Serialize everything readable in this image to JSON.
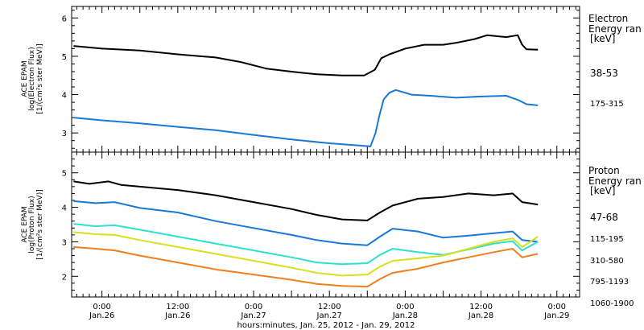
{
  "x_axis": {
    "ticks": [
      {
        "time": "0:00",
        "date": "Jan.26",
        "hours": 24
      },
      {
        "time": "12:00",
        "date": "Jan.26",
        "hours": 36
      },
      {
        "time": "0:00",
        "date": "Jan.27",
        "hours": 48
      },
      {
        "time": "12:00",
        "date": "Jan.27",
        "hours": 60
      },
      {
        "time": "0:00",
        "date": "Jan.28",
        "hours": 72
      },
      {
        "time": "12:00",
        "date": "Jan.28",
        "hours": 84
      },
      {
        "time": "0:00",
        "date": "Jan.29",
        "hours": 96
      }
    ],
    "label": "hours:minutes, Jan. 25, 2012 - Jan. 29, 2012"
  },
  "chart_data": [
    {
      "type": "line",
      "panel": "electron",
      "ylabel": [
        "ACE EPAM",
        "log(Electron Flux)",
        "[1/(cm²s ster MeV)]"
      ],
      "ylim": [
        2.5,
        6.3
      ],
      "yticks": [
        3,
        4,
        5,
        6
      ],
      "legend_title": [
        "Electron",
        "Energy ran",
        "[keV]"
      ],
      "x_unit": "hours since Jan. 25, 2012 0:00",
      "xlim": [
        19.2,
        99.6
      ],
      "series": [
        {
          "name": "38-53",
          "color": "#000000",
          "points": [
            [
              19.5,
              5.27
            ],
            [
              24,
              5.2
            ],
            [
              30,
              5.15
            ],
            [
              36,
              5.05
            ],
            [
              42,
              4.97
            ],
            [
              46,
              4.85
            ],
            [
              50,
              4.68
            ],
            [
              54,
              4.6
            ],
            [
              58,
              4.53
            ],
            [
              62,
              4.5
            ],
            [
              65.5,
              4.5
            ],
            [
              67.2,
              4.65
            ],
            [
              68.2,
              4.95
            ],
            [
              69.5,
              5.05
            ],
            [
              72,
              5.2
            ],
            [
              75,
              5.3
            ],
            [
              78,
              5.3
            ],
            [
              80,
              5.35
            ],
            [
              83,
              5.45
            ],
            [
              85,
              5.55
            ],
            [
              88,
              5.5
            ],
            [
              89.8,
              5.55
            ],
            [
              90.5,
              5.3
            ],
            [
              91.2,
              5.18
            ],
            [
              93,
              5.17
            ]
          ]
        },
        {
          "name": "175-315",
          "color": "#1a78d6",
          "points": [
            [
              19.5,
              3.4
            ],
            [
              24,
              3.33
            ],
            [
              30,
              3.25
            ],
            [
              36,
              3.16
            ],
            [
              42,
              3.07
            ],
            [
              48,
              2.95
            ],
            [
              54,
              2.83
            ],
            [
              60,
              2.73
            ],
            [
              64,
              2.68
            ],
            [
              66.5,
              2.65
            ],
            [
              67.3,
              3.0
            ],
            [
              67.9,
              3.45
            ],
            [
              68.6,
              3.88
            ],
            [
              69.5,
              4.05
            ],
            [
              70.5,
              4.12
            ],
            [
              73,
              4.0
            ],
            [
              76,
              3.97
            ],
            [
              80,
              3.92
            ],
            [
              84,
              3.95
            ],
            [
              88,
              3.97
            ],
            [
              90,
              3.85
            ],
            [
              91.2,
              3.75
            ],
            [
              93,
              3.72
            ]
          ]
        }
      ]
    },
    {
      "type": "line",
      "panel": "proton",
      "ylabel": [
        "ACE EPAM",
        "log(Proton Flux)",
        "[1/(cm²s ster MeV)]"
      ],
      "ylim": [
        1.4,
        5.6
      ],
      "yticks": [
        2,
        3,
        4,
        5
      ],
      "legend_title": [
        "Proton",
        "Energy ran",
        "[keV]"
      ],
      "x_unit": "hours since Jan. 25, 2012 0:00",
      "xlim": [
        19.2,
        99.6
      ],
      "series": [
        {
          "name": "47-68",
          "color": "#000000",
          "points": [
            [
              19.5,
              4.75
            ],
            [
              22,
              4.68
            ],
            [
              25,
              4.75
            ],
            [
              27,
              4.65
            ],
            [
              30,
              4.6
            ],
            [
              36,
              4.5
            ],
            [
              42,
              4.35
            ],
            [
              48,
              4.15
            ],
            [
              54,
              3.95
            ],
            [
              58,
              3.78
            ],
            [
              62,
              3.65
            ],
            [
              66,
              3.62
            ],
            [
              68,
              3.85
            ],
            [
              70,
              4.05
            ],
            [
              74,
              4.25
            ],
            [
              78,
              4.3
            ],
            [
              82,
              4.4
            ],
            [
              86,
              4.35
            ],
            [
              89,
              4.4
            ],
            [
              90.5,
              4.15
            ],
            [
              93,
              4.08
            ]
          ]
        },
        {
          "name": "115-195",
          "color": "#1a78d6",
          "points": [
            [
              19.5,
              4.18
            ],
            [
              23,
              4.12
            ],
            [
              26,
              4.15
            ],
            [
              30,
              3.98
            ],
            [
              36,
              3.85
            ],
            [
              42,
              3.6
            ],
            [
              48,
              3.4
            ],
            [
              54,
              3.2
            ],
            [
              58,
              3.05
            ],
            [
              62,
              2.95
            ],
            [
              66,
              2.9
            ],
            [
              68,
              3.15
            ],
            [
              70,
              3.38
            ],
            [
              74,
              3.3
            ],
            [
              78,
              3.12
            ],
            [
              82,
              3.18
            ],
            [
              86,
              3.25
            ],
            [
              89,
              3.3
            ],
            [
              90.5,
              3.05
            ],
            [
              93,
              3.0
            ]
          ]
        },
        {
          "name": "310-580",
          "color": "#2fe0d0",
          "points": [
            [
              19.5,
              3.52
            ],
            [
              23,
              3.45
            ],
            [
              26,
              3.48
            ],
            [
              30,
              3.35
            ],
            [
              36,
              3.15
            ],
            [
              42,
              2.95
            ],
            [
              48,
              2.75
            ],
            [
              54,
              2.55
            ],
            [
              58,
              2.4
            ],
            [
              62,
              2.35
            ],
            [
              66,
              2.38
            ],
            [
              68,
              2.62
            ],
            [
              70,
              2.8
            ],
            [
              74,
              2.7
            ],
            [
              78,
              2.62
            ],
            [
              82,
              2.78
            ],
            [
              86,
              2.95
            ],
            [
              89,
              3.02
            ],
            [
              90.5,
              2.75
            ],
            [
              93,
              3.0
            ]
          ]
        },
        {
          "name": "795-1193",
          "color": "#d9e020",
          "points": [
            [
              19.5,
              3.28
            ],
            [
              23,
              3.22
            ],
            [
              26,
              3.2
            ],
            [
              30,
              3.05
            ],
            [
              36,
              2.85
            ],
            [
              42,
              2.65
            ],
            [
              48,
              2.45
            ],
            [
              54,
              2.25
            ],
            [
              58,
              2.1
            ],
            [
              62,
              2.02
            ],
            [
              66,
              2.05
            ],
            [
              68,
              2.28
            ],
            [
              70,
              2.45
            ],
            [
              74,
              2.52
            ],
            [
              78,
              2.6
            ],
            [
              82,
              2.8
            ],
            [
              86,
              3.0
            ],
            [
              89,
              3.1
            ],
            [
              90.5,
              2.85
            ],
            [
              93,
              3.15
            ]
          ]
        },
        {
          "name": "1060-1900",
          "color": "#f07f1c",
          "points": [
            [
              19.5,
              2.85
            ],
            [
              23,
              2.8
            ],
            [
              26,
              2.75
            ],
            [
              30,
              2.6
            ],
            [
              36,
              2.4
            ],
            [
              42,
              2.2
            ],
            [
              48,
              2.05
            ],
            [
              54,
              1.9
            ],
            [
              58,
              1.78
            ],
            [
              62,
              1.72
            ],
            [
              66,
              1.7
            ],
            [
              68,
              1.92
            ],
            [
              70,
              2.1
            ],
            [
              74,
              2.22
            ],
            [
              78,
              2.4
            ],
            [
              82,
              2.55
            ],
            [
              86,
              2.7
            ],
            [
              89,
              2.8
            ],
            [
              90.5,
              2.55
            ],
            [
              93,
              2.65
            ]
          ]
        }
      ]
    }
  ]
}
